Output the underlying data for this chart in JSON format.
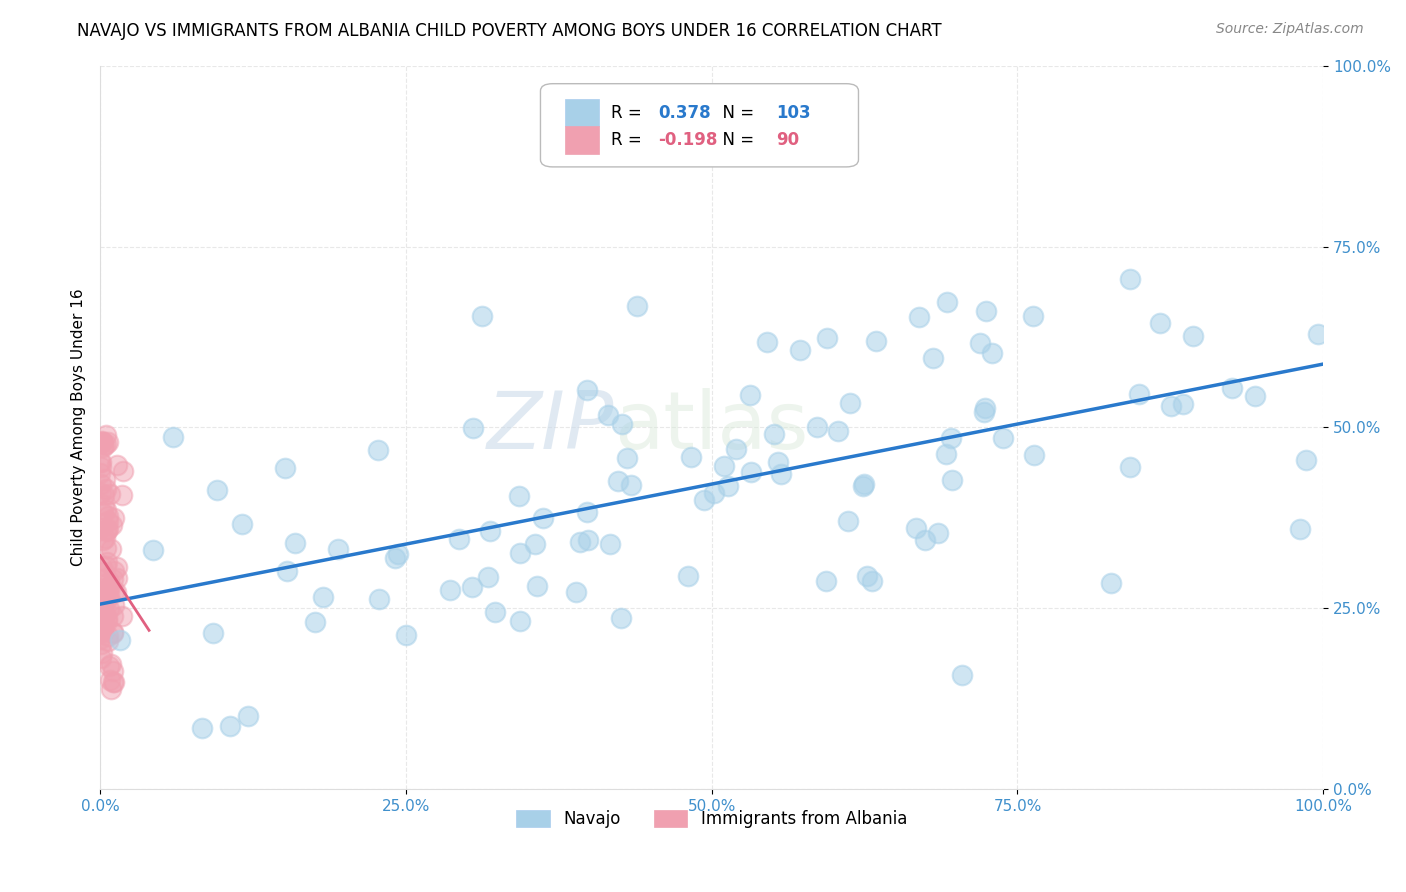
{
  "title": "NAVAJO VS IMMIGRANTS FROM ALBANIA CHILD POVERTY AMONG BOYS UNDER 16 CORRELATION CHART",
  "source": "Source: ZipAtlas.com",
  "ylabel": "Child Poverty Among Boys Under 16",
  "navajo_R": 0.378,
  "navajo_N": 103,
  "albania_R": -0.198,
  "albania_N": 90,
  "navajo_color": "#a8d0e8",
  "albania_color": "#f0a0b0",
  "navajo_line_color": "#2979cc",
  "albania_line_color": "#e06080",
  "tick_label_color": "#4090cc",
  "background_color": "#ffffff",
  "grid_color": "#e8e8e8",
  "xlim": [
    0,
    1
  ],
  "ylim": [
    0,
    1
  ],
  "xticks": [
    0,
    0.25,
    0.5,
    0.75,
    1.0
  ],
  "yticks": [
    0,
    0.25,
    0.5,
    0.75,
    1.0
  ],
  "xticklabels": [
    "0.0%",
    "25.0%",
    "50.0%",
    "75.0%",
    "100.0%"
  ],
  "yticklabels": [
    "0.0%",
    "25.0%",
    "50.0%",
    "75.0%",
    "100.0%"
  ]
}
